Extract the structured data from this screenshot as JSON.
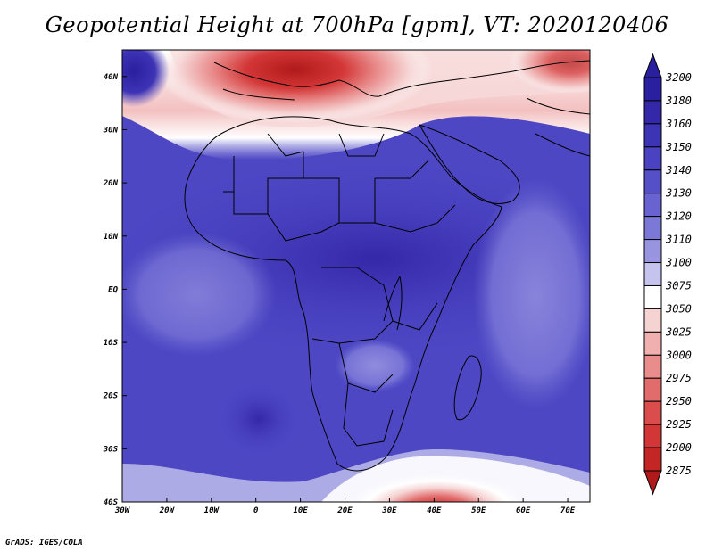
{
  "title": "Geopotential Height at 700hPa [gpm], VT: 2020120406",
  "footer": "GrADS: IGES/COLA",
  "map": {
    "lat_labels": [
      "40N",
      "30N",
      "20N",
      "10N",
      "EQ",
      "10S",
      "20S",
      "30S",
      "40S"
    ],
    "lon_labels": [
      "30W",
      "20W",
      "10W",
      "0",
      "10E",
      "20E",
      "30E",
      "40E",
      "50E",
      "60E",
      "70E"
    ],
    "lon_range": [
      -30,
      75
    ],
    "lat_range": [
      -40,
      45
    ]
  },
  "colorbar": {
    "levels": [
      "3200",
      "3180",
      "3160",
      "3150",
      "3140",
      "3130",
      "3120",
      "3110",
      "3100",
      "3075",
      "3050",
      "3025",
      "3000",
      "2975",
      "2950",
      "2925",
      "2900",
      "2875"
    ],
    "colors": [
      "#2a1f9e",
      "#3427a8",
      "#3d33b5",
      "#4a42c0",
      "#5650c8",
      "#6863d0",
      "#7c78d8",
      "#9894e0",
      "#c6c4ee",
      "#ffffff",
      "#f6d3d3",
      "#f0b0b0",
      "#e98c8c",
      "#e26b6b",
      "#db4c4c",
      "#d33636",
      "#c42626",
      "#b01a1a"
    ]
  }
}
